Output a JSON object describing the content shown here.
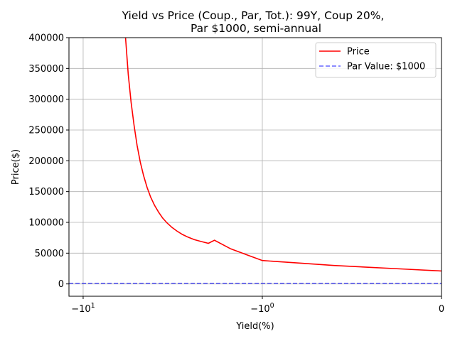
{
  "chart_data": {
    "type": "line",
    "title_lines": [
      "Yield vs Price (Coup., Par, Tot.): 99Y, Coup 20%,",
      "Par $1000, semi-annual"
    ],
    "xlabel": "Yield(%)",
    "ylabel": "Price($)",
    "xscale": "symlog",
    "xlim": [
      -12,
      0
    ],
    "ylim": [
      -20000,
      400000
    ],
    "x_ticks": [
      {
        "value": -10,
        "base": "−10",
        "exp": "1"
      },
      {
        "value": -1,
        "base": "−10",
        "exp": "0"
      },
      {
        "value": 0,
        "base": "0",
        "exp": ""
      }
    ],
    "y_ticks": [
      0,
      50000,
      100000,
      150000,
      200000,
      250000,
      300000,
      350000,
      400000
    ],
    "grid": true,
    "legend_position": "top-right",
    "series": [
      {
        "name": "Price",
        "color": "#ff0000",
        "style": "solid",
        "x": [
          -5.8,
          -5.6,
          -5.4,
          -5.2,
          -5.0,
          -4.8,
          -4.6,
          -4.4,
          -4.2,
          -4.0,
          -3.8,
          -3.6,
          -3.4,
          -3.2,
          -3.0,
          -2.8,
          -2.6,
          -2.4,
          -2.2,
          -2.0,
          -1.85,
          -1.5,
          -1.2,
          -1.0,
          -0.8,
          -0.6,
          -0.4,
          -0.2,
          0.0
        ],
        "y": [
          400000,
          340000,
          295000,
          258000,
          225000,
          198000,
          176000,
          157000,
          141000,
          128000,
          117000,
          107000,
          99000,
          92000,
          86000,
          80500,
          76000,
          72000,
          69000,
          66000,
          71000,
          57000,
          46500,
          38000,
          34000,
          30000,
          27000,
          24000,
          21000
        ]
      },
      {
        "name": "Par Value: $1000",
        "color": "#0000ff",
        "style": "dashed",
        "x": [
          -12,
          0
        ],
        "y": [
          1000,
          1000
        ]
      }
    ]
  }
}
